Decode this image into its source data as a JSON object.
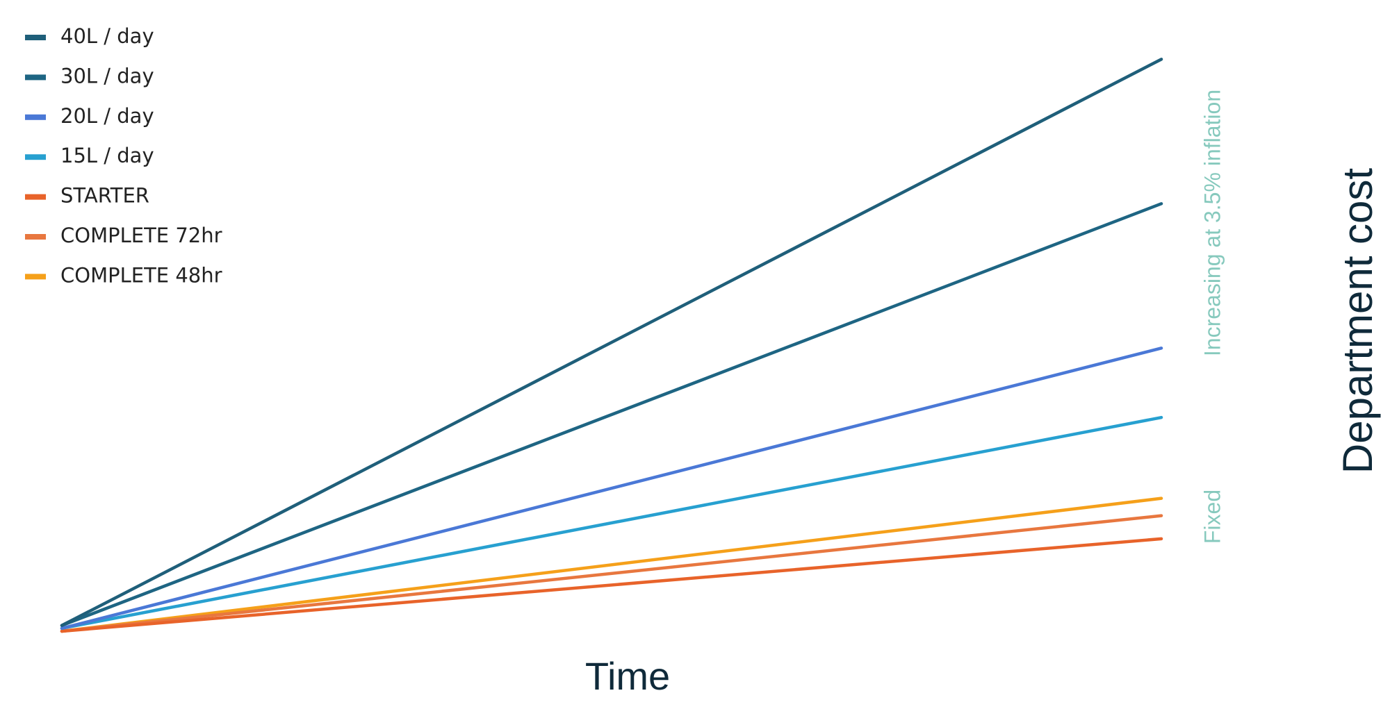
{
  "chart_data": {
    "type": "line",
    "x_label": "Time",
    "y_label": "Department cost",
    "annotations": [
      "Increasing at 3.5% inflation",
      "Fixed"
    ],
    "categories": [
      null,
      null
    ],
    "ylim": [
      0,
      100
    ],
    "series": [
      {
        "name": "40L / day",
        "color": "#1f5f7a",
        "values": [
          1,
          99
        ]
      },
      {
        "name": "30L / day",
        "color": "#1e6583",
        "values": [
          1,
          74
        ]
      },
      {
        "name": "20L / day",
        "color": "#4a78d6",
        "values": [
          0.5,
          49
        ]
      },
      {
        "name": "15L / day",
        "color": "#27a0d0",
        "values": [
          0.5,
          37
        ]
      },
      {
        "name": "STARTER",
        "color": "#e8632a",
        "values": [
          0,
          16
        ]
      },
      {
        "name": "COMPLETE 72hr",
        "color": "#e8773f",
        "values": [
          0,
          20
        ]
      },
      {
        "name": "COMPLETE 48hr",
        "color": "#f5a01a",
        "values": [
          0,
          23
        ]
      }
    ]
  }
}
